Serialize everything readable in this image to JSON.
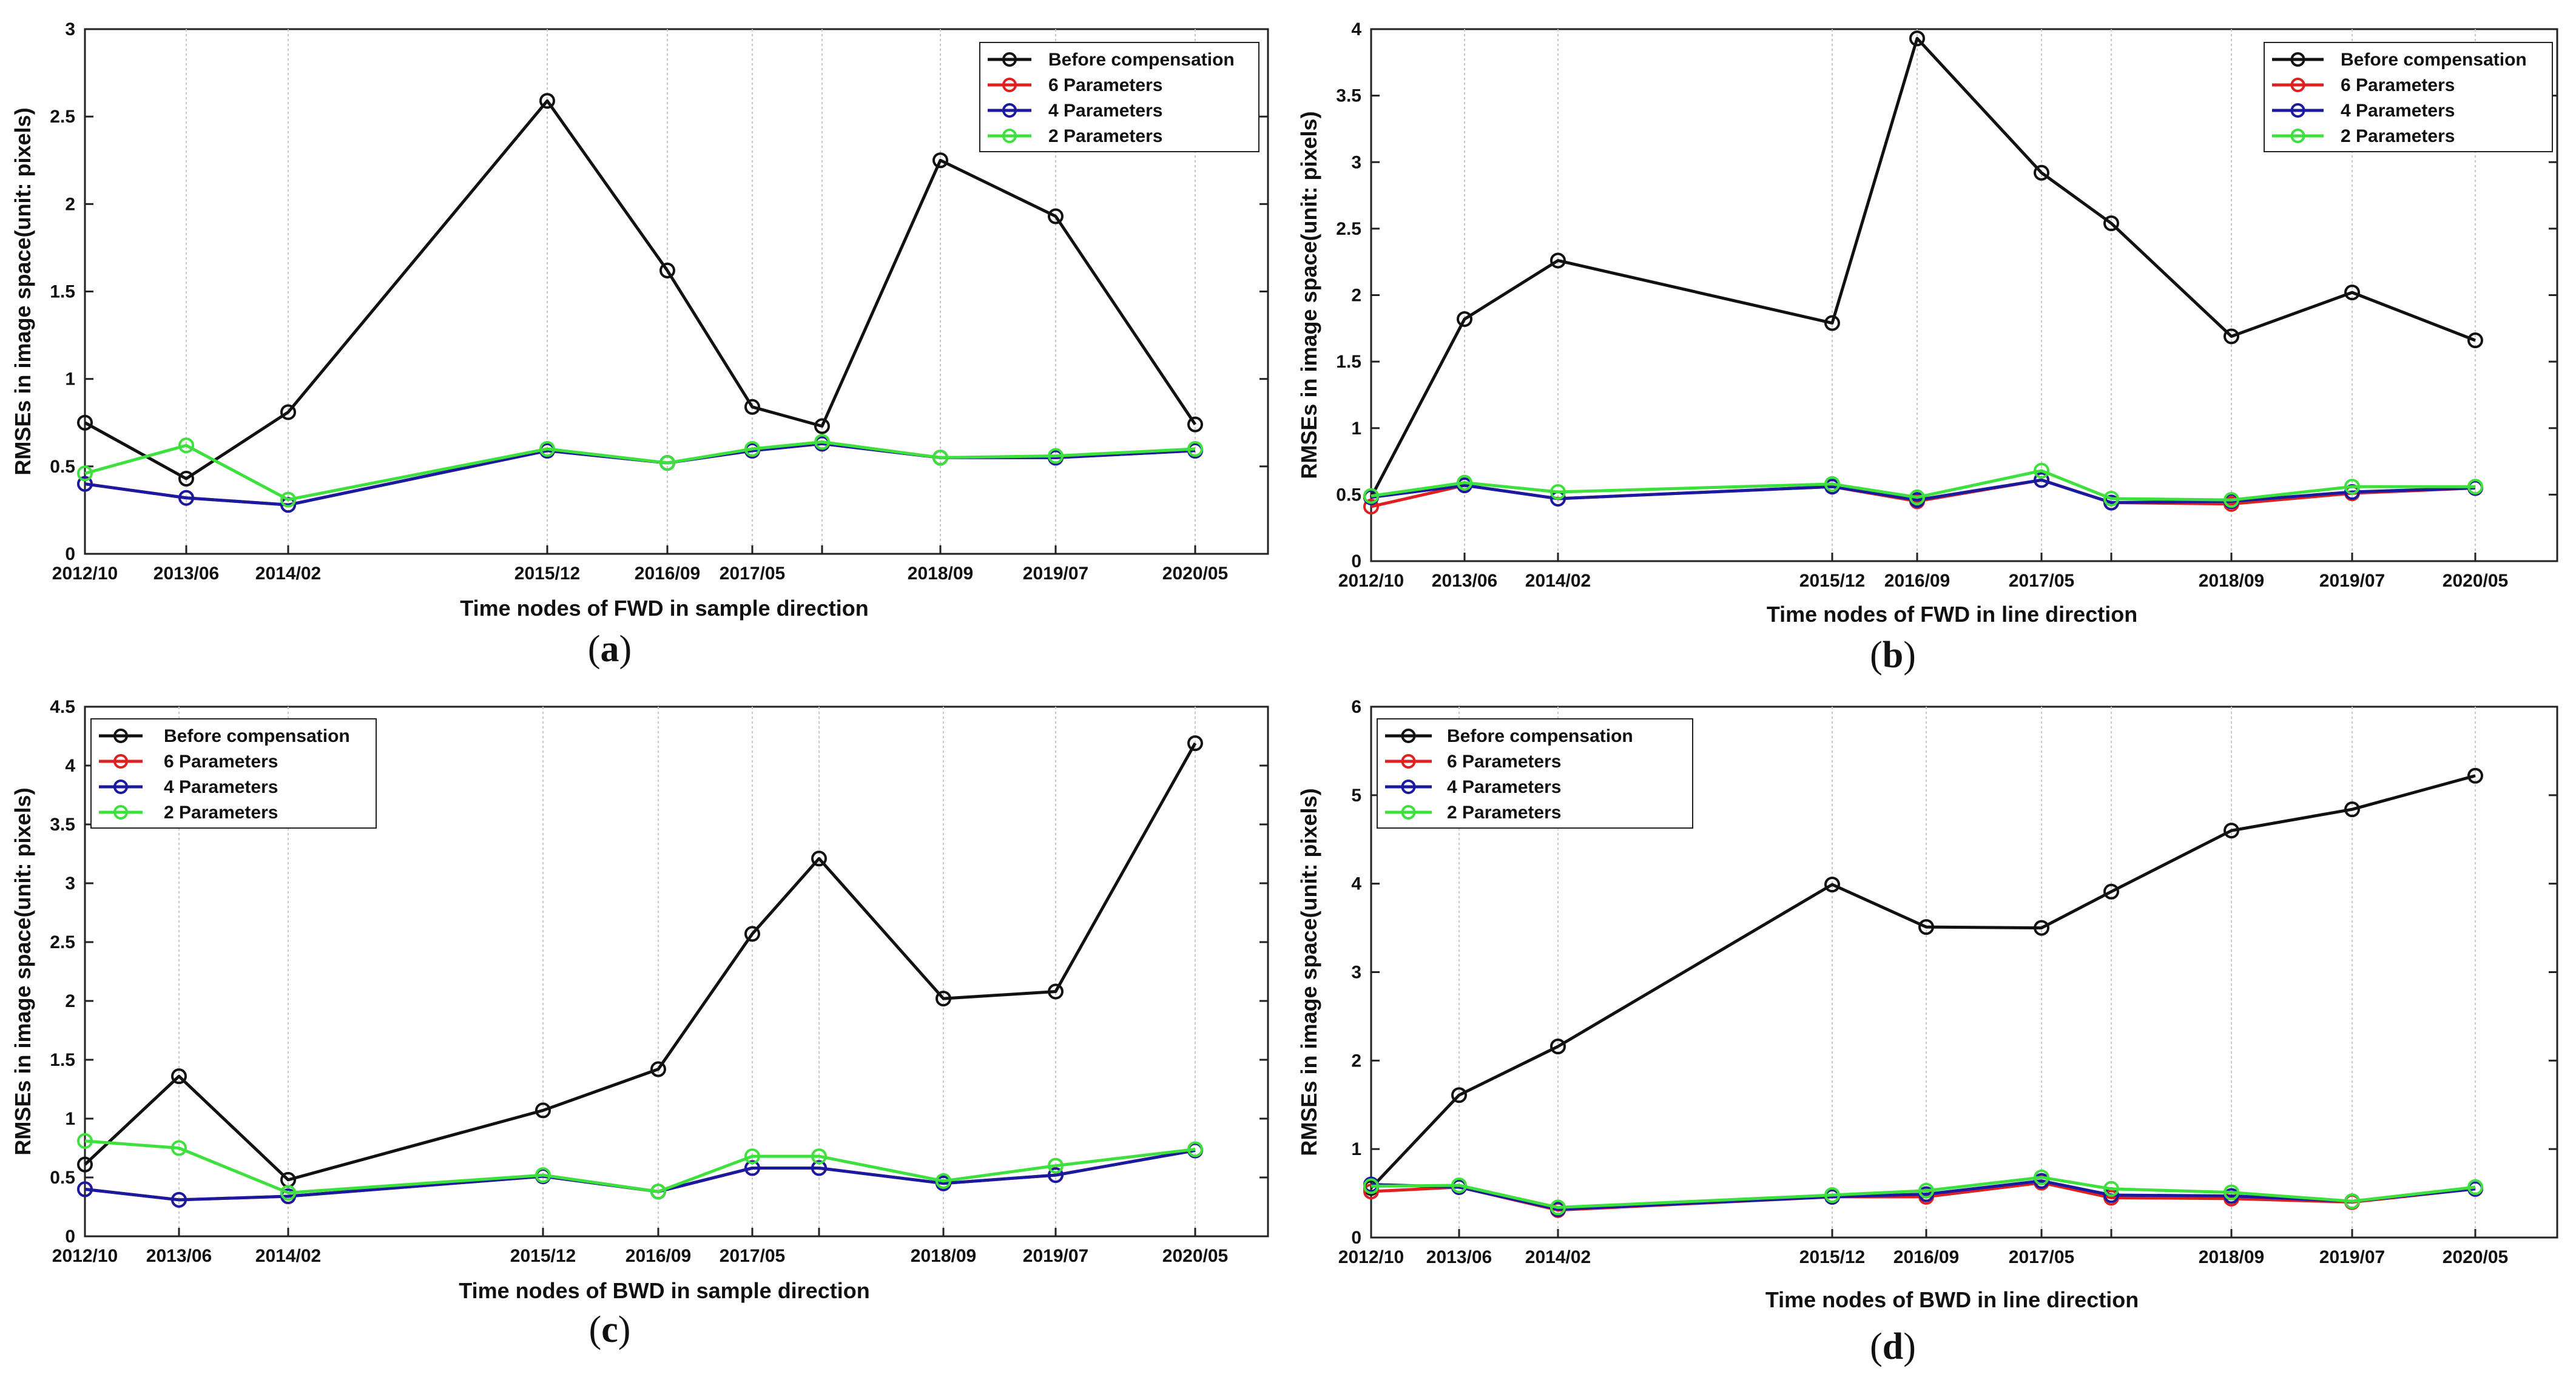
{
  "chart_data": [
    {
      "id": "a",
      "type": "line",
      "caption_letter": "a",
      "title": "",
      "xlabel": "Time nodes of FWD in sample direction",
      "ylabel": "RMSEs in image space(unit: pixels)",
      "ylim": [
        0,
        3
      ],
      "yticks": [
        "0",
        "0.5",
        "1",
        "1.5",
        "2",
        "2.5",
        "3"
      ],
      "xlim": [
        0,
        100
      ],
      "x": [
        0,
        11,
        22,
        50,
        63,
        72,
        79,
        91,
        101,
        116
      ],
      "xtick_labels": [
        "2012/10",
        "2013/06",
        "2014/02",
        "2015/12",
        "2016/09",
        "2017/05",
        "",
        "2018/09",
        "2019/07",
        "2020/05"
      ],
      "legend": [
        "Before compensation",
        "6 Parameters",
        "4 Parameters",
        "2 Parameters"
      ],
      "series": [
        {
          "name": "Before compensation",
          "color": "#111111",
          "values": [
            0.75,
            0.43,
            0.81,
            2.59,
            1.62,
            0.84,
            0.73,
            2.25,
            1.93,
            0.74
          ]
        },
        {
          "name": "6 Parameters",
          "color": "#e02020",
          "values": [
            0.4,
            0.32,
            0.28,
            0.59,
            0.52,
            0.59,
            0.63,
            0.55,
            0.55,
            0.59
          ]
        },
        {
          "name": "4 Parameters",
          "color": "#1a1aa0",
          "values": [
            0.4,
            0.32,
            0.28,
            0.59,
            0.52,
            0.59,
            0.63,
            0.55,
            0.55,
            0.59
          ]
        },
        {
          "name": "2 Parameters",
          "color": "#3ee03e",
          "values": [
            0.46,
            0.62,
            0.31,
            0.6,
            0.52,
            0.6,
            0.64,
            0.55,
            0.56,
            0.6
          ]
        }
      ]
    },
    {
      "id": "b",
      "type": "line",
      "caption_letter": "b",
      "title": "",
      "xlabel": "Time nodes of FWD in line direction",
      "ylabel": "RMSEs in image space(unit: pixels)",
      "ylim": [
        0,
        4
      ],
      "yticks": [
        "0",
        "0.5",
        "1",
        "1.5",
        "2",
        "2.5",
        "3",
        "3.5",
        "4"
      ],
      "x": [
        0,
        11,
        22,
        50,
        63,
        72,
        79,
        91,
        101,
        112
      ],
      "xtick_labels": [
        "2012/10",
        "2013/06",
        "2014/02",
        "2015/12",
        "2016/09",
        "2017/05",
        "",
        "2018/09",
        "2019/07",
        "2020/05"
      ],
      "legend": [
        "Before compensation",
        "6 Parameters",
        "4 Parameters",
        "2 Parameters"
      ],
      "series": [
        {
          "name": "Before compensation",
          "color": "#111111",
          "values": [
            0.48,
            1.82,
            2.26,
            1.79,
            3.93,
            2.92,
            2.54,
            1.69,
            2.02,
            1.66
          ]
        },
        {
          "name": "6 Parameters",
          "color": "#e02020",
          "values": [
            0.41,
            0.57,
            0.47,
            0.56,
            0.45,
            0.61,
            0.44,
            0.43,
            0.51,
            0.55
          ]
        },
        {
          "name": "4 Parameters",
          "color": "#1a1aa0",
          "values": [
            0.48,
            0.57,
            0.47,
            0.56,
            0.46,
            0.61,
            0.44,
            0.45,
            0.52,
            0.55
          ]
        },
        {
          "name": "2 Parameters",
          "color": "#3ee03e",
          "values": [
            0.49,
            0.59,
            0.52,
            0.58,
            0.48,
            0.68,
            0.47,
            0.46,
            0.56,
            0.56
          ]
        }
      ]
    },
    {
      "id": "c",
      "type": "line",
      "caption_letter": "c",
      "title": "",
      "xlabel": "Time nodes of BWD in sample direction",
      "ylabel": "RMSEs in image space(unit: pixels)",
      "ylim": [
        0,
        4.5
      ],
      "yticks": [
        "0",
        "0.5",
        "1",
        "1.5",
        "2",
        "2.5",
        "3",
        "3.5",
        "4",
        "4.5"
      ],
      "x": [
        0,
        11,
        22,
        50,
        63,
        72,
        79,
        91,
        101,
        116
      ],
      "xtick_labels": [
        "2012/10",
        "2013/06",
        "2014/02",
        "2015/12",
        "2016/09",
        "2017/05",
        "",
        "2018/09",
        "2019/07",
        "2020/05"
      ],
      "legend": [
        "Before compensation",
        "6 Parameters",
        "4 Parameters",
        "2 Parameters"
      ],
      "series": [
        {
          "name": "Before compensation",
          "color": "#111111",
          "values": [
            0.61,
            1.36,
            0.48,
            1.07,
            1.42,
            2.57,
            3.21,
            2.02,
            2.08,
            4.19
          ]
        },
        {
          "name": "6 Parameters",
          "color": "#e02020",
          "values": [
            0.4,
            0.31,
            0.34,
            0.51,
            0.38,
            0.58,
            0.58,
            0.45,
            0.52,
            0.73
          ]
        },
        {
          "name": "4 Parameters",
          "color": "#1a1aa0",
          "values": [
            0.4,
            0.31,
            0.34,
            0.51,
            0.38,
            0.58,
            0.58,
            0.45,
            0.52,
            0.73
          ]
        },
        {
          "name": "2 Parameters",
          "color": "#3ee03e",
          "values": [
            0.81,
            0.75,
            0.37,
            0.52,
            0.38,
            0.68,
            0.68,
            0.47,
            0.6,
            0.74
          ]
        }
      ]
    },
    {
      "id": "d",
      "type": "line",
      "caption_letter": "d",
      "title": "",
      "xlabel": "Time nodes of BWD in line direction",
      "ylabel": "RMSEs in image space(unit: pixels)",
      "ylim": [
        0,
        6
      ],
      "yticks": [
        "0",
        "1",
        "2",
        "3",
        "4",
        "5",
        "6"
      ],
      "x": [
        0,
        11,
        22,
        50,
        63,
        72,
        79,
        91,
        101,
        112
      ],
      "xtick_labels": [
        "2012/10",
        "2013/06",
        "2014/02",
        "2015/12",
        "2016/09",
        "2017/05",
        "",
        "2018/09",
        "2019/07",
        "2020/05"
      ],
      "legend": [
        "Before compensation",
        "6 Parameters",
        "4 Parameters",
        "2 Parameters"
      ],
      "series": [
        {
          "name": "Before compensation",
          "color": "#111111",
          "values": [
            0.56,
            1.61,
            2.16,
            3.99,
            3.51,
            3.5,
            3.91,
            4.6,
            4.84,
            5.22
          ]
        },
        {
          "name": "6 Parameters",
          "color": "#e02020",
          "values": [
            0.52,
            0.57,
            0.31,
            0.46,
            0.46,
            0.62,
            0.45,
            0.44,
            0.4,
            0.55
          ]
        },
        {
          "name": "4 Parameters",
          "color": "#1a1aa0",
          "values": [
            0.6,
            0.57,
            0.32,
            0.46,
            0.49,
            0.64,
            0.48,
            0.47,
            0.41,
            0.55
          ]
        },
        {
          "name": "2 Parameters",
          "color": "#3ee03e",
          "values": [
            0.58,
            0.59,
            0.34,
            0.48,
            0.53,
            0.68,
            0.55,
            0.51,
            0.41,
            0.57
          ]
        }
      ]
    }
  ]
}
